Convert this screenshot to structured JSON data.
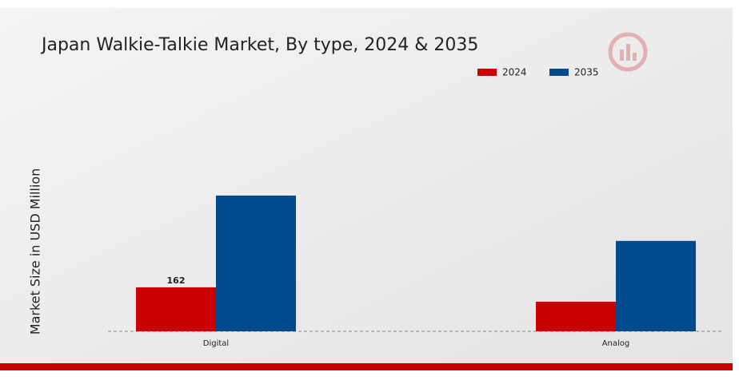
{
  "chart_data": {
    "type": "bar",
    "title": "Japan Walkie-Talkie Market, By type, 2024 & 2035",
    "y_label": "Market Size in USD Million",
    "categories": [
      "Digital",
      "Analog"
    ],
    "series": [
      {
        "name": "2024",
        "color": "#cc0000",
        "values": [
          162,
          109
        ],
        "value_labels": [
          "162",
          null
        ]
      },
      {
        "name": "2035",
        "color": "#004a8f",
        "values": [
          500,
          333
        ]
      }
    ],
    "ylim": [
      0,
      550
    ]
  }
}
